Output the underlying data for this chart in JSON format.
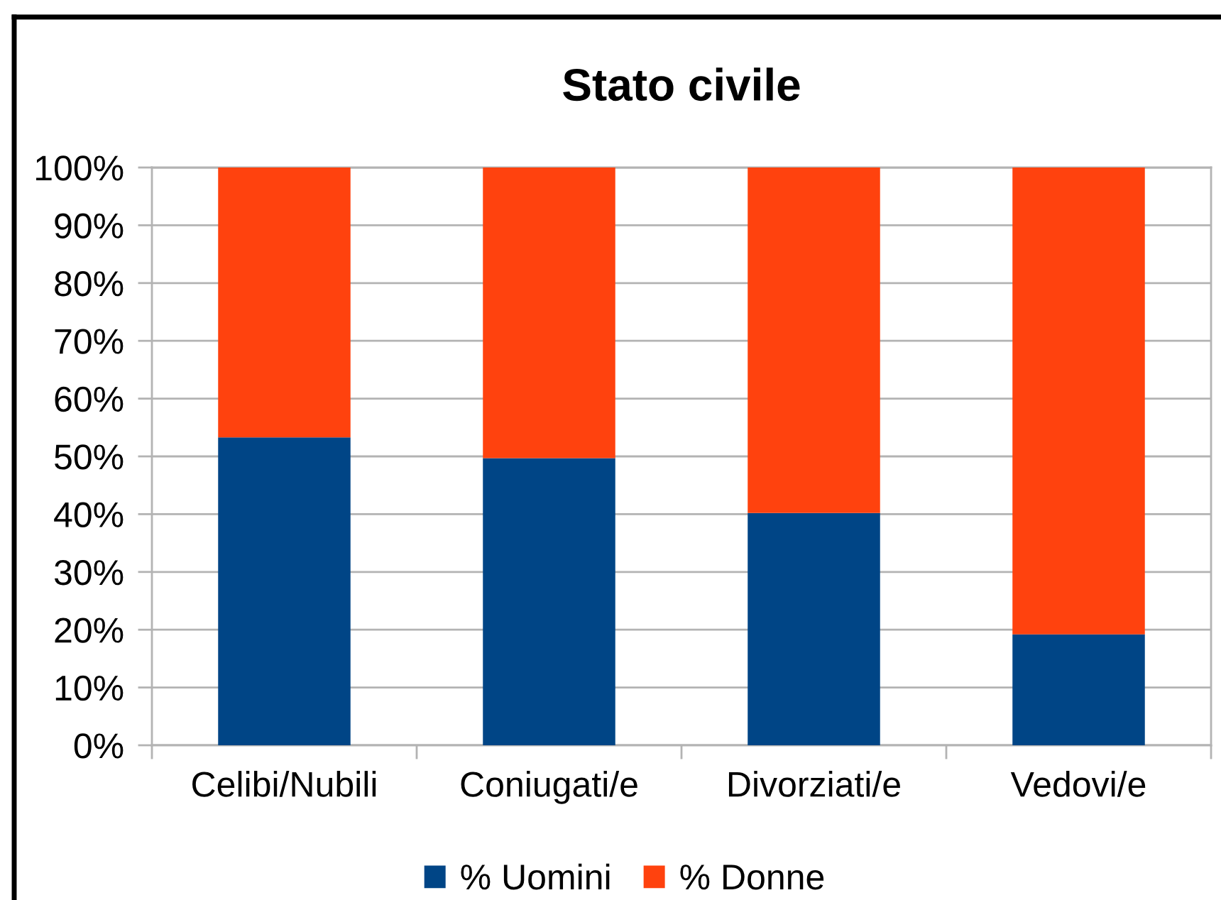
{
  "chart_data": {
    "type": "bar",
    "title": "Stato civile",
    "categories": [
      "Celibi/Nubili",
      "Coniugati/e",
      "Divorziati/e",
      "Vedovi/e"
    ],
    "series": [
      {
        "name": "% Uomini",
        "color": "#004586",
        "values": [
          53.3,
          49.7,
          40.2,
          19.2
        ]
      },
      {
        "name": "% Donne",
        "color": "#ff420e",
        "values": [
          46.7,
          50.3,
          59.8,
          80.8
        ]
      }
    ],
    "stacked": true,
    "ylim": [
      0,
      100
    ],
    "yticks": [
      {
        "value": 0,
        "label": "0%"
      },
      {
        "value": 10,
        "label": "10%"
      },
      {
        "value": 20,
        "label": "20%"
      },
      {
        "value": 30,
        "label": "30%"
      },
      {
        "value": 40,
        "label": "40%"
      },
      {
        "value": 50,
        "label": "50%"
      },
      {
        "value": 60,
        "label": "60%"
      },
      {
        "value": 70,
        "label": "70%"
      },
      {
        "value": 80,
        "label": "80%"
      },
      {
        "value": 90,
        "label": "90%"
      },
      {
        "value": 100,
        "label": "100%"
      }
    ],
    "grid": "y",
    "legend": "bottom"
  }
}
